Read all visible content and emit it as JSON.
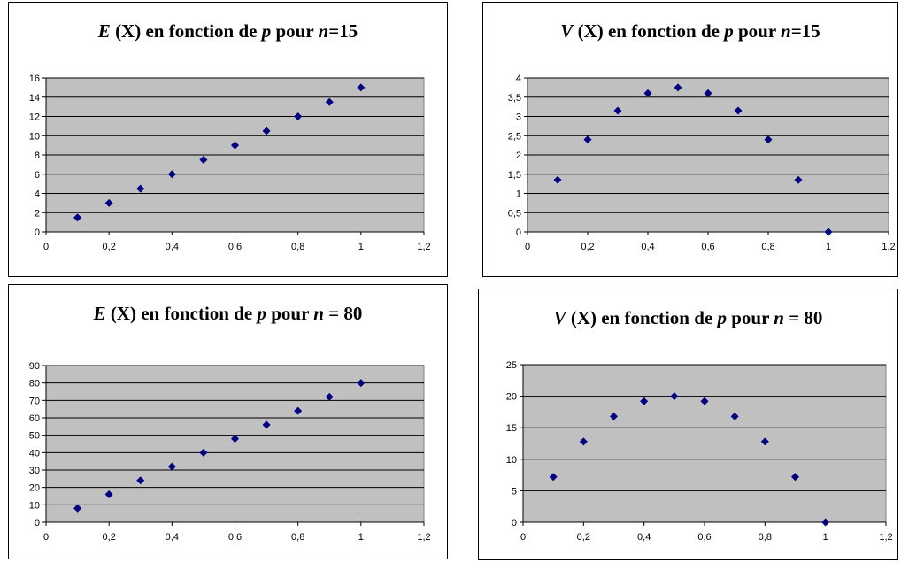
{
  "chart_data": [
    {
      "type": "scatter",
      "title": {
        "prefix": "E",
        "var": "(X)",
        "mid": "en fonction de",
        "p": "p",
        "pour": "pour",
        "n": "n",
        "eq": "=15"
      },
      "x": [
        0.1,
        0.2,
        0.3,
        0.4,
        0.5,
        0.6,
        0.7,
        0.8,
        0.9,
        1
      ],
      "y": [
        1.5,
        3,
        4.5,
        6,
        7.5,
        9,
        10.5,
        12,
        13.5,
        15
      ],
      "xticks": [
        "0",
        "0,2",
        "0,4",
        "0,6",
        "0,8",
        "1",
        "1,2"
      ],
      "yticks": [
        "0",
        "2",
        "4",
        "6",
        "8",
        "10",
        "12",
        "14",
        "16"
      ],
      "xlim": [
        0,
        1.2
      ],
      "ylim": [
        0,
        16
      ],
      "grid": true,
      "plot_bg": "#c0c0c0",
      "marker_color": "#000080"
    },
    {
      "type": "scatter",
      "title": {
        "prefix": "V",
        "var": "(X)",
        "mid": "en fonction de",
        "p": "p",
        "pour": "pour",
        "n": "n",
        "eq": "=15"
      },
      "x": [
        0.1,
        0.2,
        0.3,
        0.4,
        0.5,
        0.6,
        0.7,
        0.8,
        0.9,
        1
      ],
      "y": [
        1.35,
        2.4,
        3.15,
        3.6,
        3.75,
        3.6,
        3.15,
        2.4,
        1.35,
        0
      ],
      "xticks": [
        "0",
        "0,2",
        "0,4",
        "0,6",
        "0,8",
        "1",
        "1,2"
      ],
      "yticks": [
        "0",
        "0,5",
        "1",
        "1,5",
        "2",
        "2,5",
        "3",
        "3,5",
        "4"
      ],
      "xlim": [
        0,
        1.2
      ],
      "ylim": [
        0,
        4
      ],
      "grid": true,
      "plot_bg": "#c0c0c0",
      "marker_color": "#000080"
    },
    {
      "type": "scatter",
      "title": {
        "prefix": "E",
        "var": "(X)",
        "mid": "en fonction de",
        "p": "p",
        "pour": "pour",
        "n": "n",
        "eq": "= 80"
      },
      "x": [
        0.1,
        0.2,
        0.3,
        0.4,
        0.5,
        0.6,
        0.7,
        0.8,
        0.9,
        1
      ],
      "y": [
        8,
        16,
        24,
        32,
        40,
        48,
        56,
        64,
        72,
        80
      ],
      "xticks": [
        "0",
        "0,2",
        "0,4",
        "0,6",
        "0,8",
        "1",
        "1,2"
      ],
      "yticks": [
        "0",
        "10",
        "20",
        "30",
        "40",
        "50",
        "60",
        "70",
        "80",
        "90"
      ],
      "xlim": [
        0,
        1.2
      ],
      "ylim": [
        0,
        90
      ],
      "grid": true,
      "plot_bg": "#c0c0c0",
      "marker_color": "#000080"
    },
    {
      "type": "scatter",
      "title": {
        "prefix": "V",
        "var": "(X)",
        "mid": "en fonction de",
        "p": "p",
        "pour": "pour",
        "n": "n",
        "eq": "= 80"
      },
      "x": [
        0.1,
        0.2,
        0.3,
        0.4,
        0.5,
        0.6,
        0.7,
        0.8,
        0.9,
        1
      ],
      "y": [
        7.2,
        12.8,
        16.8,
        19.2,
        20,
        19.2,
        16.8,
        12.8,
        7.2,
        0
      ],
      "xticks": [
        "0",
        "0,2",
        "0,4",
        "0,6",
        "0,8",
        "1",
        "1,2"
      ],
      "yticks": [
        "0",
        "5",
        "10",
        "15",
        "20",
        "25"
      ],
      "xlim": [
        0,
        1.2
      ],
      "ylim": [
        0,
        25
      ],
      "grid": true,
      "plot_bg": "#c0c0c0",
      "marker_color": "#000080"
    }
  ]
}
